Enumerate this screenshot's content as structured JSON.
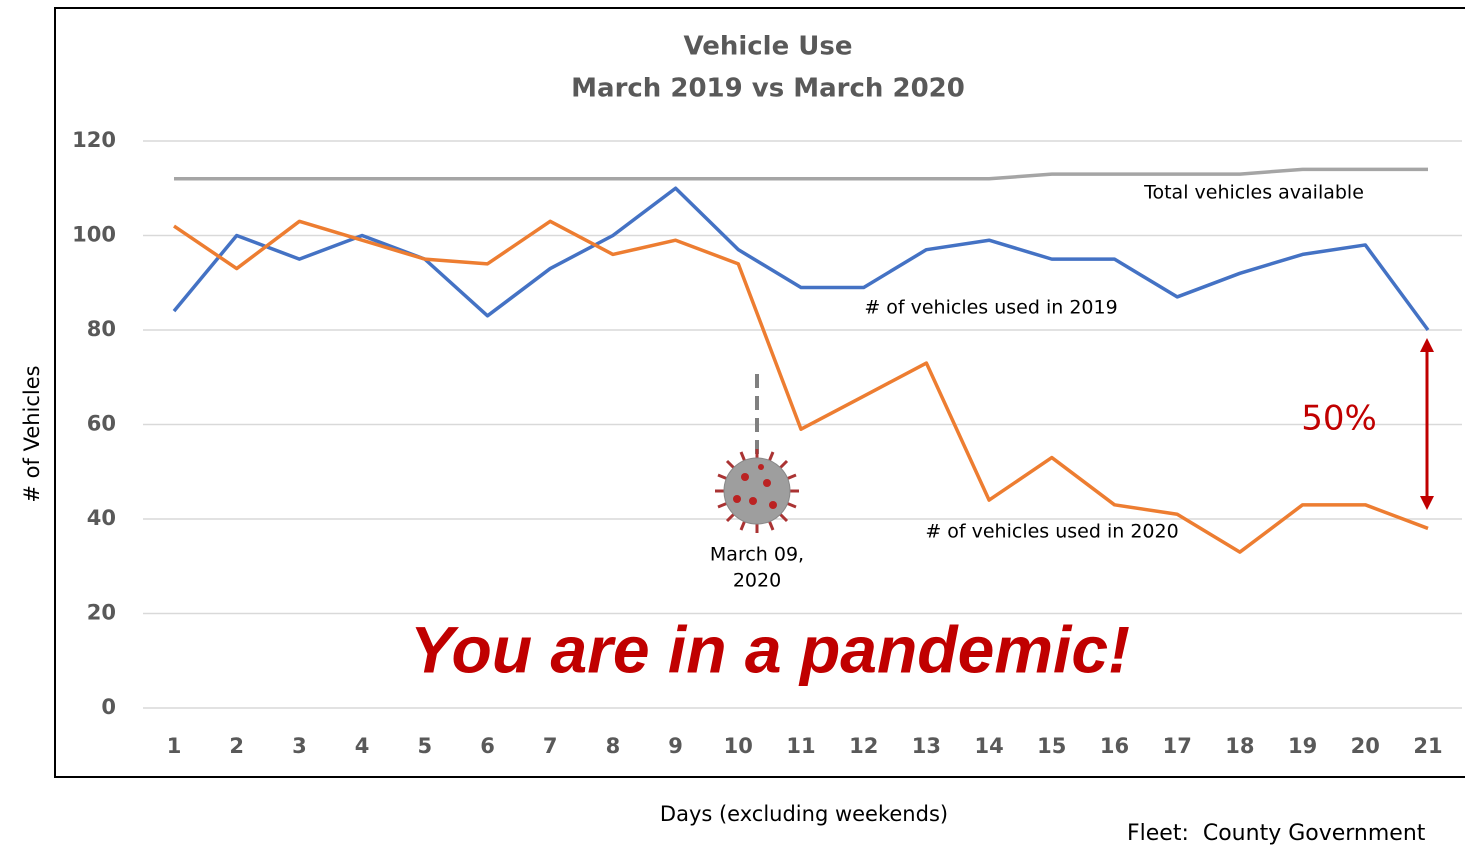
{
  "chart_data": {
    "type": "line",
    "title": "Vehicle Use",
    "subtitle": "March 2019 vs March 2020",
    "x_label": "Days (excluding weekends)",
    "y_label": "# of Vehicles",
    "categories": [
      "1",
      "2",
      "3",
      "4",
      "5",
      "6",
      "7",
      "8",
      "9",
      "10",
      "11",
      "12",
      "13",
      "14",
      "15",
      "16",
      "17",
      "18",
      "19",
      "20",
      "21"
    ],
    "series": [
      {
        "name": "Total vehicles available",
        "color": "#a5a5a5",
        "values": [
          112,
          112,
          112,
          112,
          112,
          112,
          112,
          112,
          112,
          112,
          112,
          112,
          112,
          112,
          113,
          113,
          113,
          113,
          114,
          114,
          114
        ]
      },
      {
        "name": "# of vehicles used in 2019",
        "color": "#4472c4",
        "values": [
          84,
          100,
          95,
          100,
          95,
          83,
          93,
          100,
          110,
          97,
          89,
          89,
          97,
          99,
          95,
          95,
          87,
          92,
          96,
          98,
          80
        ]
      },
      {
        "name": "# of vehicles used in 2020",
        "color": "#ed7d31",
        "values": [
          102,
          93,
          103,
          99,
          95,
          94,
          103,
          96,
          99,
          94,
          59,
          66,
          73,
          44,
          53,
          43,
          41,
          33,
          43,
          43,
          38
        ]
      }
    ],
    "ylim": [
      0,
      120
    ],
    "yticks": [
      0,
      20,
      40,
      60,
      80,
      100,
      120
    ],
    "grid": true,
    "event_label": [
      "March 09,",
      "2020"
    ],
    "change_label": "50%",
    "headline": "You are in a pandemic!",
    "source": "Fleet:  County Government"
  }
}
